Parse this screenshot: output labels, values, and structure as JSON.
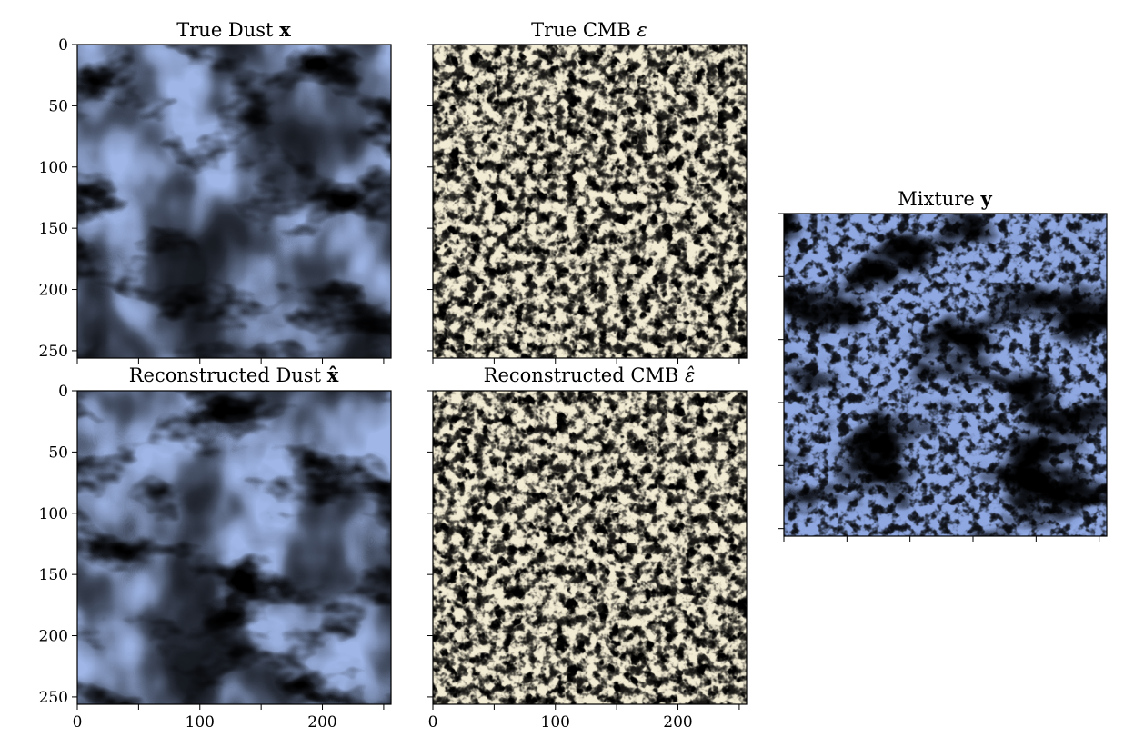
{
  "chart_data": [
    {
      "type": "heatmap",
      "id": "dust-true",
      "title": "True Dust",
      "title_symbol": "x",
      "colormap": "blue-cream-brown diverging",
      "colors": {
        "low": "#3a5fcd",
        "mid": "#f7f2dc",
        "high": "#8b3a08"
      },
      "texture": "smooth filamentary",
      "xlim": [
        0,
        256
      ],
      "ylim": [
        256,
        0
      ],
      "y_ticks": [
        "0",
        "50",
        "100",
        "150",
        "200",
        "250"
      ],
      "x_ticks": []
    },
    {
      "type": "heatmap",
      "id": "cmb-true",
      "title": "True CMB",
      "title_symbol": "ε",
      "colormap": "blue-cream-brown diverging",
      "colors": {
        "low": "#3a5fcd",
        "mid": "#f7f2dc",
        "high": "#8b3a08"
      },
      "texture": "fine grainy noise",
      "xlim": [
        0,
        256
      ],
      "ylim": [
        256,
        0
      ],
      "y_ticks": [],
      "x_ticks": []
    },
    {
      "type": "heatmap",
      "id": "mixture",
      "title": "Mixture",
      "title_symbol": "y",
      "colormap": "blue-cream-brown diverging",
      "colors": {
        "low": "#3a5fcd",
        "mid": "#f7f2dc",
        "high": "#8b3a08"
      },
      "texture": "dust plus noise",
      "xlim": [
        0,
        256
      ],
      "ylim": [
        256,
        0
      ],
      "y_ticks": [],
      "x_ticks": []
    },
    {
      "type": "heatmap",
      "id": "dust-recon",
      "title": "Reconstructed Dust",
      "title_symbol": "x̂",
      "colormap": "blue-cream-brown diverging",
      "colors": {
        "low": "#3a5fcd",
        "mid": "#f7f2dc",
        "high": "#8b3a08"
      },
      "texture": "smooth filamentary",
      "xlim": [
        0,
        256
      ],
      "ylim": [
        256,
        0
      ],
      "y_ticks": [
        "0",
        "50",
        "100",
        "150",
        "200",
        "250"
      ],
      "x_ticks": [
        "0",
        "100",
        "200"
      ]
    },
    {
      "type": "heatmap",
      "id": "cmb-recon",
      "title": "Reconstructed CMB",
      "title_symbol": "ε̂",
      "colormap": "blue-cream-brown diverging",
      "colors": {
        "low": "#3a5fcd",
        "mid": "#f7f2dc",
        "high": "#8b3a08"
      },
      "texture": "fine grainy noise",
      "xlim": [
        0,
        256
      ],
      "ylim": [
        256,
        0
      ],
      "y_ticks": [],
      "x_ticks": [
        "0",
        "100",
        "200"
      ]
    }
  ]
}
